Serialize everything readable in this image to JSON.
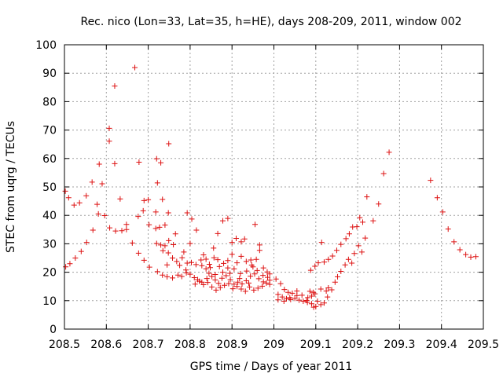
{
  "chart_data": {
    "type": "scatter",
    "title": "Rec. nico (Lon=33, Lat=35, h=HE), days 208-209, 2011, window 002",
    "xlabel": "GPS time / Days of year 2011",
    "ylabel": "STEC from uqrg / TECUs",
    "xlim": [
      208.5,
      209.5
    ],
    "ylim": [
      0,
      100
    ],
    "xticks": [
      "208.5",
      "208.6",
      "208.7",
      "208.8",
      "208.9",
      "209",
      "209.1",
      "209.2",
      "209.3",
      "209.4",
      "209.5"
    ],
    "yticks": [
      "0",
      "10",
      "20",
      "30",
      "40",
      "50",
      "60",
      "70",
      "80",
      "90",
      "100"
    ],
    "grid": true,
    "marker": "+",
    "color": "#dd1111",
    "series": [
      {
        "points": [
          [
            208.502,
            48.5
          ],
          [
            208.51,
            46.2
          ],
          [
            208.523,
            43.6
          ],
          [
            208.536,
            44.4
          ],
          [
            208.552,
            46.9
          ],
          [
            208.566,
            51.7
          ],
          [
            208.578,
            43.9
          ],
          [
            208.59,
            51.1
          ],
          [
            208.596,
            39.9
          ],
          [
            208.607,
            70.6
          ],
          [
            208.62,
            85.5
          ],
          [
            208.633,
            45.8
          ],
          [
            208.607,
            66.1
          ],
          [
            208.62,
            58.2
          ],
          [
            208.583,
            58.0
          ],
          [
            208.581,
            40.5
          ],
          [
            208.568,
            34.8
          ],
          [
            208.553,
            30.5
          ],
          [
            208.54,
            27.3
          ],
          [
            208.526,
            25.0
          ],
          [
            208.513,
            23.0
          ],
          [
            208.503,
            21.9
          ],
          [
            208.608,
            35.6
          ],
          [
            208.622,
            34.5
          ],
          [
            208.637,
            34.6
          ],
          [
            208.648,
            36.8
          ],
          [
            208.662,
            30.3
          ],
          [
            208.677,
            26.7
          ],
          [
            208.668,
            92.0
          ],
          [
            208.678,
            58.7
          ],
          [
            208.69,
            45.2
          ],
          [
            208.7,
            45.5
          ],
          [
            208.676,
            39.6
          ],
          [
            208.688,
            41.6
          ],
          [
            208.702,
            36.7
          ],
          [
            208.648,
            35.0
          ],
          [
            208.69,
            24.2
          ],
          [
            208.703,
            21.8
          ],
          [
            208.72,
            59.9
          ],
          [
            208.73,
            58.5
          ],
          [
            208.749,
            65.2
          ],
          [
            208.722,
            51.4
          ],
          [
            208.734,
            45.6
          ],
          [
            208.718,
            41.2
          ],
          [
            208.748,
            40.9
          ],
          [
            208.718,
            35.4
          ],
          [
            208.727,
            35.8
          ],
          [
            208.74,
            36.6
          ],
          [
            208.72,
            30.1
          ],
          [
            208.73,
            29.6
          ],
          [
            208.74,
            29.3
          ],
          [
            208.749,
            31.1
          ],
          [
            208.76,
            29.7
          ],
          [
            208.765,
            33.5
          ],
          [
            208.735,
            27.6
          ],
          [
            208.748,
            26.8
          ],
          [
            208.758,
            25.0
          ],
          [
            208.745,
            22.6
          ],
          [
            208.722,
            20.2
          ],
          [
            208.734,
            19.0
          ],
          [
            208.745,
            18.4
          ],
          [
            208.758,
            18.0
          ],
          [
            208.771,
            19.0
          ],
          [
            208.78,
            18.5
          ],
          [
            208.791,
            19.8
          ],
          [
            208.79,
            20.8
          ],
          [
            208.775,
            22.4
          ],
          [
            208.768,
            23.8
          ],
          [
            208.781,
            25.1
          ],
          [
            208.793,
            23.2
          ],
          [
            208.785,
            27.1
          ],
          [
            208.8,
            30.1
          ],
          [
            208.793,
            40.9
          ],
          [
            208.804,
            38.7
          ],
          [
            208.815,
            34.8
          ],
          [
            208.826,
            24.3
          ],
          [
            208.832,
            26.1
          ],
          [
            208.838,
            24.6
          ],
          [
            208.846,
            22.8
          ],
          [
            208.856,
            28.5
          ],
          [
            208.866,
            33.6
          ],
          [
            208.878,
            38.1
          ],
          [
            208.89,
            38.9
          ],
          [
            208.9,
            30.5
          ],
          [
            208.91,
            31.9
          ],
          [
            208.922,
            30.7
          ],
          [
            208.93,
            31.7
          ],
          [
            208.945,
            24.3
          ],
          [
            208.955,
            36.8
          ],
          [
            208.966,
            29.6
          ],
          [
            208.966,
            27.7
          ],
          [
            208.958,
            24.5
          ],
          [
            208.947,
            22.5
          ],
          [
            208.934,
            23.8
          ],
          [
            208.922,
            25.6
          ],
          [
            208.912,
            23.3
          ],
          [
            208.9,
            26.3
          ],
          [
            208.89,
            21.5
          ],
          [
            208.878,
            20.0
          ],
          [
            208.866,
            24.4
          ],
          [
            208.857,
            25.1
          ],
          [
            208.848,
            21.6
          ],
          [
            208.838,
            21.2
          ],
          [
            208.828,
            22.3
          ],
          [
            208.814,
            22.7
          ],
          [
            208.803,
            23.4
          ],
          [
            208.8,
            19.3
          ],
          [
            208.81,
            18.1
          ],
          [
            208.818,
            17.4
          ],
          [
            208.828,
            16.5
          ],
          [
            208.84,
            17.8
          ],
          [
            208.852,
            18.5
          ],
          [
            208.86,
            17.3
          ],
          [
            208.868,
            16.1
          ],
          [
            208.876,
            17.9
          ],
          [
            208.886,
            18.8
          ],
          [
            208.896,
            17.4
          ],
          [
            208.905,
            15.8
          ],
          [
            208.914,
            16.5
          ],
          [
            208.924,
            15.9
          ],
          [
            208.934,
            17.0
          ],
          [
            208.944,
            18.6
          ],
          [
            208.954,
            19.4
          ],
          [
            208.964,
            17.7
          ],
          [
            208.974,
            18.9
          ],
          [
            208.984,
            20.1
          ],
          [
            208.99,
            19.4
          ],
          [
            208.982,
            16.2
          ],
          [
            208.972,
            15.1
          ],
          [
            208.962,
            14.4
          ],
          [
            208.952,
            13.7
          ],
          [
            208.942,
            14.8
          ],
          [
            208.932,
            13.3
          ],
          [
            208.922,
            14.1
          ],
          [
            208.912,
            15.0
          ],
          [
            208.902,
            14.2
          ],
          [
            208.892,
            16.0
          ],
          [
            208.882,
            15.4
          ],
          [
            208.872,
            14.6
          ],
          [
            208.862,
            13.7
          ],
          [
            208.852,
            14.8
          ],
          [
            208.842,
            16.4
          ],
          [
            208.832,
            15.6
          ],
          [
            208.822,
            16.8
          ],
          [
            208.812,
            15.8
          ],
          [
            208.88,
            23.1
          ],
          [
            208.87,
            22.0
          ],
          [
            208.92,
            19.5
          ],
          [
            208.935,
            20.4
          ],
          [
            208.95,
            21.9
          ],
          [
            208.96,
            20.6
          ],
          [
            208.975,
            21.5
          ],
          [
            208.985,
            18.2
          ],
          [
            208.89,
            24.1
          ],
          [
            208.905,
            21.2
          ],
          [
            208.895,
            19.6
          ],
          [
            208.86,
            19.2
          ],
          [
            208.845,
            19.6
          ],
          [
            208.975,
            16.6
          ],
          [
            208.99,
            15.7
          ],
          [
            208.99,
            17.2
          ],
          [
            208.918,
            17.8
          ],
          [
            208.94,
            16.2
          ],
          [
            209.005,
            17.6
          ],
          [
            209.016,
            16.0
          ],
          [
            209.025,
            13.9
          ],
          [
            209.034,
            12.9
          ],
          [
            209.044,
            12.6
          ],
          [
            209.055,
            13.4
          ],
          [
            209.067,
            11.9
          ],
          [
            209.081,
            11.1
          ],
          [
            209.09,
            11.6
          ],
          [
            209.098,
            12.4
          ],
          [
            209.104,
            9.8
          ],
          [
            209.112,
            8.6
          ],
          [
            209.12,
            9.2
          ],
          [
            209.128,
            11.3
          ],
          [
            209.138,
            13.8
          ],
          [
            209.01,
            12.2
          ],
          [
            209.02,
            11.3
          ],
          [
            209.03,
            10.7
          ],
          [
            209.04,
            10.4
          ],
          [
            209.05,
            10.8
          ],
          [
            209.06,
            10.2
          ],
          [
            209.07,
            9.8
          ],
          [
            209.08,
            9.4
          ],
          [
            209.09,
            8.9
          ],
          [
            209.095,
            7.7
          ],
          [
            209.1,
            7.9
          ],
          [
            209.01,
            10.3
          ],
          [
            209.024,
            9.8
          ],
          [
            209.038,
            11.1
          ],
          [
            209.055,
            11.8
          ],
          [
            209.078,
            10.1
          ],
          [
            209.086,
            13.3
          ],
          [
            209.094,
            12.9
          ],
          [
            209.112,
            14.1
          ],
          [
            209.125,
            13.4
          ],
          [
            209.13,
            14.5
          ],
          [
            209.088,
            20.7
          ],
          [
            209.098,
            22.1
          ],
          [
            209.106,
            23.3
          ],
          [
            209.114,
            30.5
          ],
          [
            209.12,
            23.6
          ],
          [
            209.13,
            24.5
          ],
          [
            209.14,
            25.7
          ],
          [
            209.15,
            27.7
          ],
          [
            209.16,
            29.8
          ],
          [
            209.172,
            31.8
          ],
          [
            209.18,
            33.5
          ],
          [
            209.188,
            35.9
          ],
          [
            209.198,
            36.0
          ],
          [
            209.205,
            39.2
          ],
          [
            209.212,
            37.6
          ],
          [
            209.222,
            46.5
          ],
          [
            209.237,
            38.1
          ],
          [
            209.25,
            44.0
          ],
          [
            209.262,
            54.7
          ],
          [
            209.275,
            62.2
          ],
          [
            209.146,
            16.5
          ],
          [
            209.152,
            18.4
          ],
          [
            209.16,
            20.3
          ],
          [
            209.17,
            22.6
          ],
          [
            209.178,
            24.5
          ],
          [
            209.186,
            23.2
          ],
          [
            209.192,
            26.6
          ],
          [
            209.202,
            29.3
          ],
          [
            209.21,
            27.1
          ],
          [
            209.218,
            32.0
          ],
          [
            209.374,
            52.3
          ],
          [
            209.39,
            46.2
          ],
          [
            209.403,
            41.2
          ],
          [
            209.416,
            35.2
          ],
          [
            209.43,
            30.7
          ],
          [
            209.444,
            27.9
          ],
          [
            209.458,
            26.2
          ],
          [
            209.47,
            25.3
          ],
          [
            209.482,
            25.5
          ]
        ]
      }
    ]
  }
}
